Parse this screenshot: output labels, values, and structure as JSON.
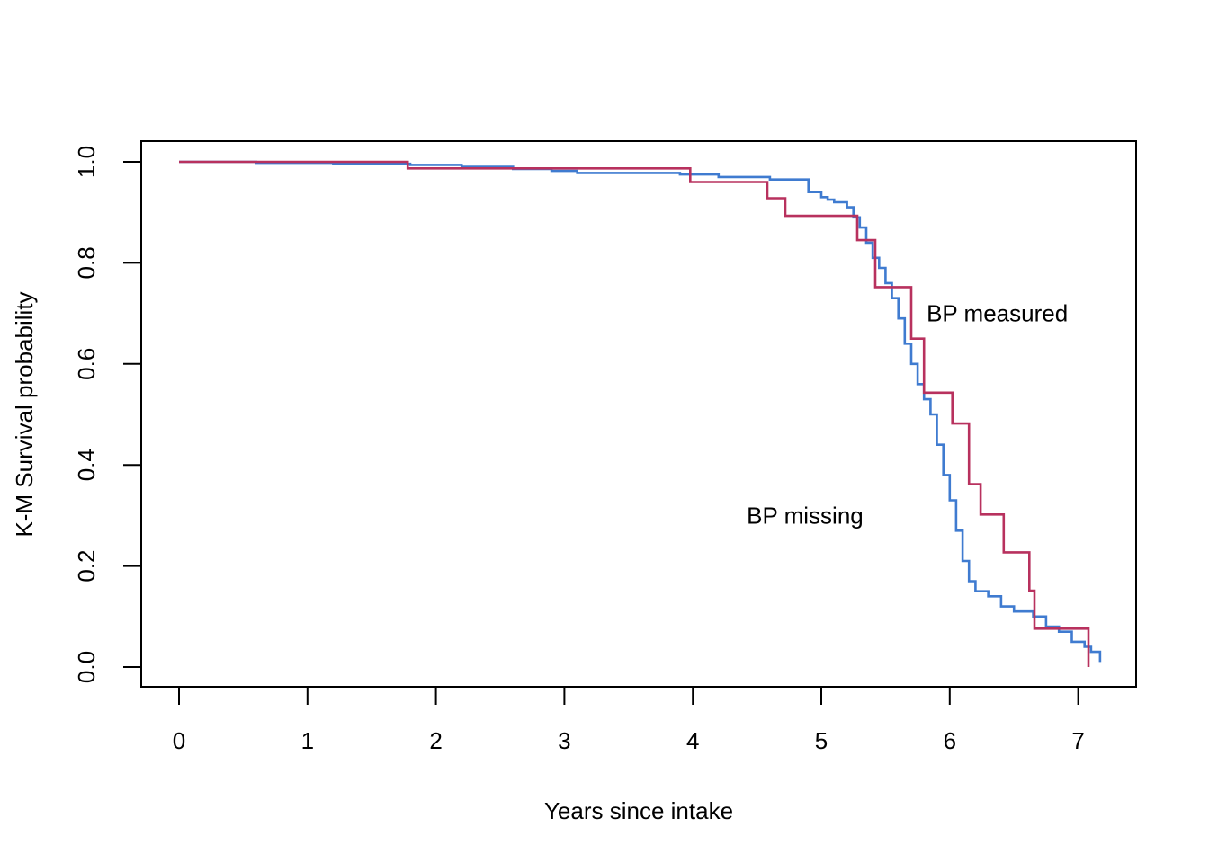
{
  "chart_data": {
    "type": "line",
    "title": "",
    "xlabel": "Years since intake",
    "ylabel": "K-M Survival probability",
    "xlim": [
      0,
      7.2
    ],
    "ylim": [
      0,
      1.0
    ],
    "x_ticks": [
      0,
      1,
      2,
      3,
      4,
      5,
      6,
      7
    ],
    "x_tick_labels": [
      "0",
      "1",
      "2",
      "3",
      "4",
      "5",
      "6",
      "7"
    ],
    "y_ticks": [
      0.0,
      0.2,
      0.4,
      0.6,
      0.8,
      1.0
    ],
    "y_tick_labels": [
      "0.0",
      "0.2",
      "0.4",
      "0.6",
      "0.8",
      "1.0"
    ],
    "grid": false,
    "annotations": [
      {
        "text": "BP measured",
        "x": 5.82,
        "y": 0.7,
        "color": "#000000"
      },
      {
        "text": "BP missing",
        "x": 4.42,
        "y": 0.3,
        "color": "#000000"
      }
    ],
    "series": [
      {
        "color": "#3f7bd0",
        "step": true,
        "x": [
          0,
          0.6,
          1.2,
          1.8,
          2.2,
          2.6,
          2.9,
          3.1,
          3.9,
          4.2,
          4.6,
          4.9,
          5.0,
          5.05,
          5.1,
          5.2,
          5.25,
          5.3,
          5.35,
          5.4,
          5.45,
          5.5,
          5.55,
          5.6,
          5.65,
          5.7,
          5.75,
          5.8,
          5.85,
          5.9,
          5.95,
          6.0,
          6.05,
          6.1,
          6.15,
          6.2,
          6.3,
          6.4,
          6.5,
          6.65,
          6.75,
          6.85,
          6.95,
          7.05,
          7.1,
          7.17
        ],
        "y": [
          1.0,
          0.998,
          0.996,
          0.994,
          0.99,
          0.986,
          0.982,
          0.978,
          0.975,
          0.97,
          0.965,
          0.94,
          0.93,
          0.925,
          0.92,
          0.91,
          0.89,
          0.87,
          0.84,
          0.81,
          0.79,
          0.76,
          0.73,
          0.69,
          0.64,
          0.6,
          0.56,
          0.53,
          0.5,
          0.44,
          0.38,
          0.33,
          0.27,
          0.21,
          0.17,
          0.15,
          0.14,
          0.12,
          0.11,
          0.1,
          0.08,
          0.07,
          0.05,
          0.04,
          0.03,
          0.01
        ]
      },
      {
        "color": "#b8315e",
        "step": true,
        "x": [
          0,
          1.78,
          3.98,
          4.58,
          4.72,
          5.28,
          5.42,
          5.58,
          5.7,
          5.8,
          6.02,
          6.15,
          6.24,
          6.42,
          6.62,
          6.66,
          7.08
        ],
        "y": [
          1.0,
          0.987,
          0.96,
          0.928,
          0.893,
          0.845,
          0.752,
          0.752,
          0.65,
          0.543,
          0.482,
          0.362,
          0.302,
          0.227,
          0.151,
          0.076,
          0.0
        ]
      }
    ]
  }
}
